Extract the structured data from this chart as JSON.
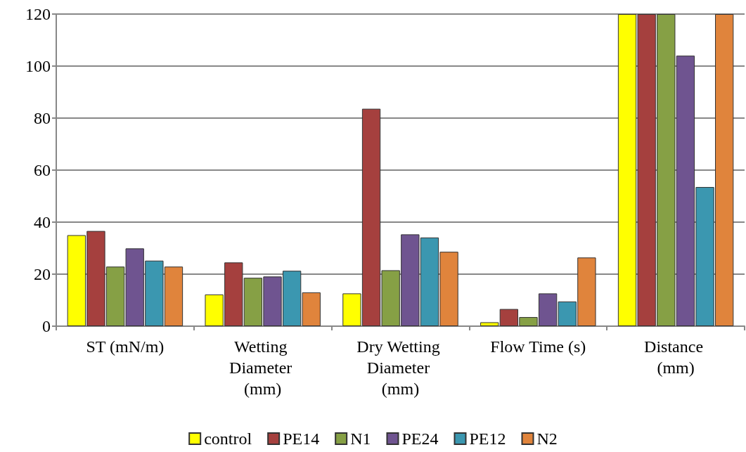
{
  "chart_data": {
    "type": "bar",
    "categories": [
      "ST (mN/m)",
      "Wetting Diameter (mm)",
      "Dry Wetting Diameter (mm)",
      "Flow Time (s)",
      "Distance (mm)"
    ],
    "series": [
      {
        "name": "control",
        "color": "#ffff00",
        "values": [
          35,
          12.2,
          12.6,
          1.5,
          120
        ]
      },
      {
        "name": "PE14",
        "color": "#a5403e",
        "values": [
          36.6,
          24.5,
          83.6,
          6.6,
          120
        ]
      },
      {
        "name": "N1",
        "color": "#86a045",
        "values": [
          22.9,
          18.6,
          21.5,
          3.5,
          120
        ]
      },
      {
        "name": "PE24",
        "color": "#6f5490",
        "values": [
          29.9,
          19.1,
          35.3,
          12.6,
          104
        ]
      },
      {
        "name": "PE12",
        "color": "#3b97b0",
        "values": [
          25.2,
          21.3,
          34.1,
          9.5,
          53.5
        ]
      },
      {
        "name": "N2",
        "color": "#e0843c",
        "values": [
          22.9,
          13,
          28.6,
          26.4,
          120
        ]
      }
    ],
    "ylim": [
      0,
      120
    ],
    "yticks": [
      0,
      20,
      40,
      60,
      80,
      100,
      120
    ],
    "grid": "y",
    "legend": "bottom"
  }
}
